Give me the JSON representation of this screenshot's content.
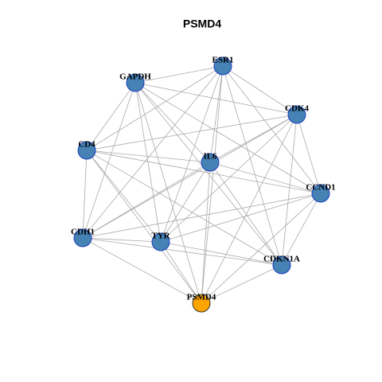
{
  "title": "PSMD4",
  "nodes": [
    {
      "label": "ESR1",
      "color": "#4682b4"
    },
    {
      "label": "GAPDH",
      "color": "#4682b4"
    },
    {
      "label": "CDK4",
      "color": "#4682b4"
    },
    {
      "label": "CD4",
      "color": "#4682b4"
    },
    {
      "label": "IL6",
      "color": "#4682b4"
    },
    {
      "label": "CCND1",
      "color": "#4682b4"
    },
    {
      "label": "CDH1",
      "color": "#4682b4"
    },
    {
      "label": "TYR",
      "color": "#4682b4"
    },
    {
      "label": "CDKN1A",
      "color": "#4682b4"
    },
    {
      "label": "PSMD4",
      "color": "#ffa500"
    }
  ]
}
